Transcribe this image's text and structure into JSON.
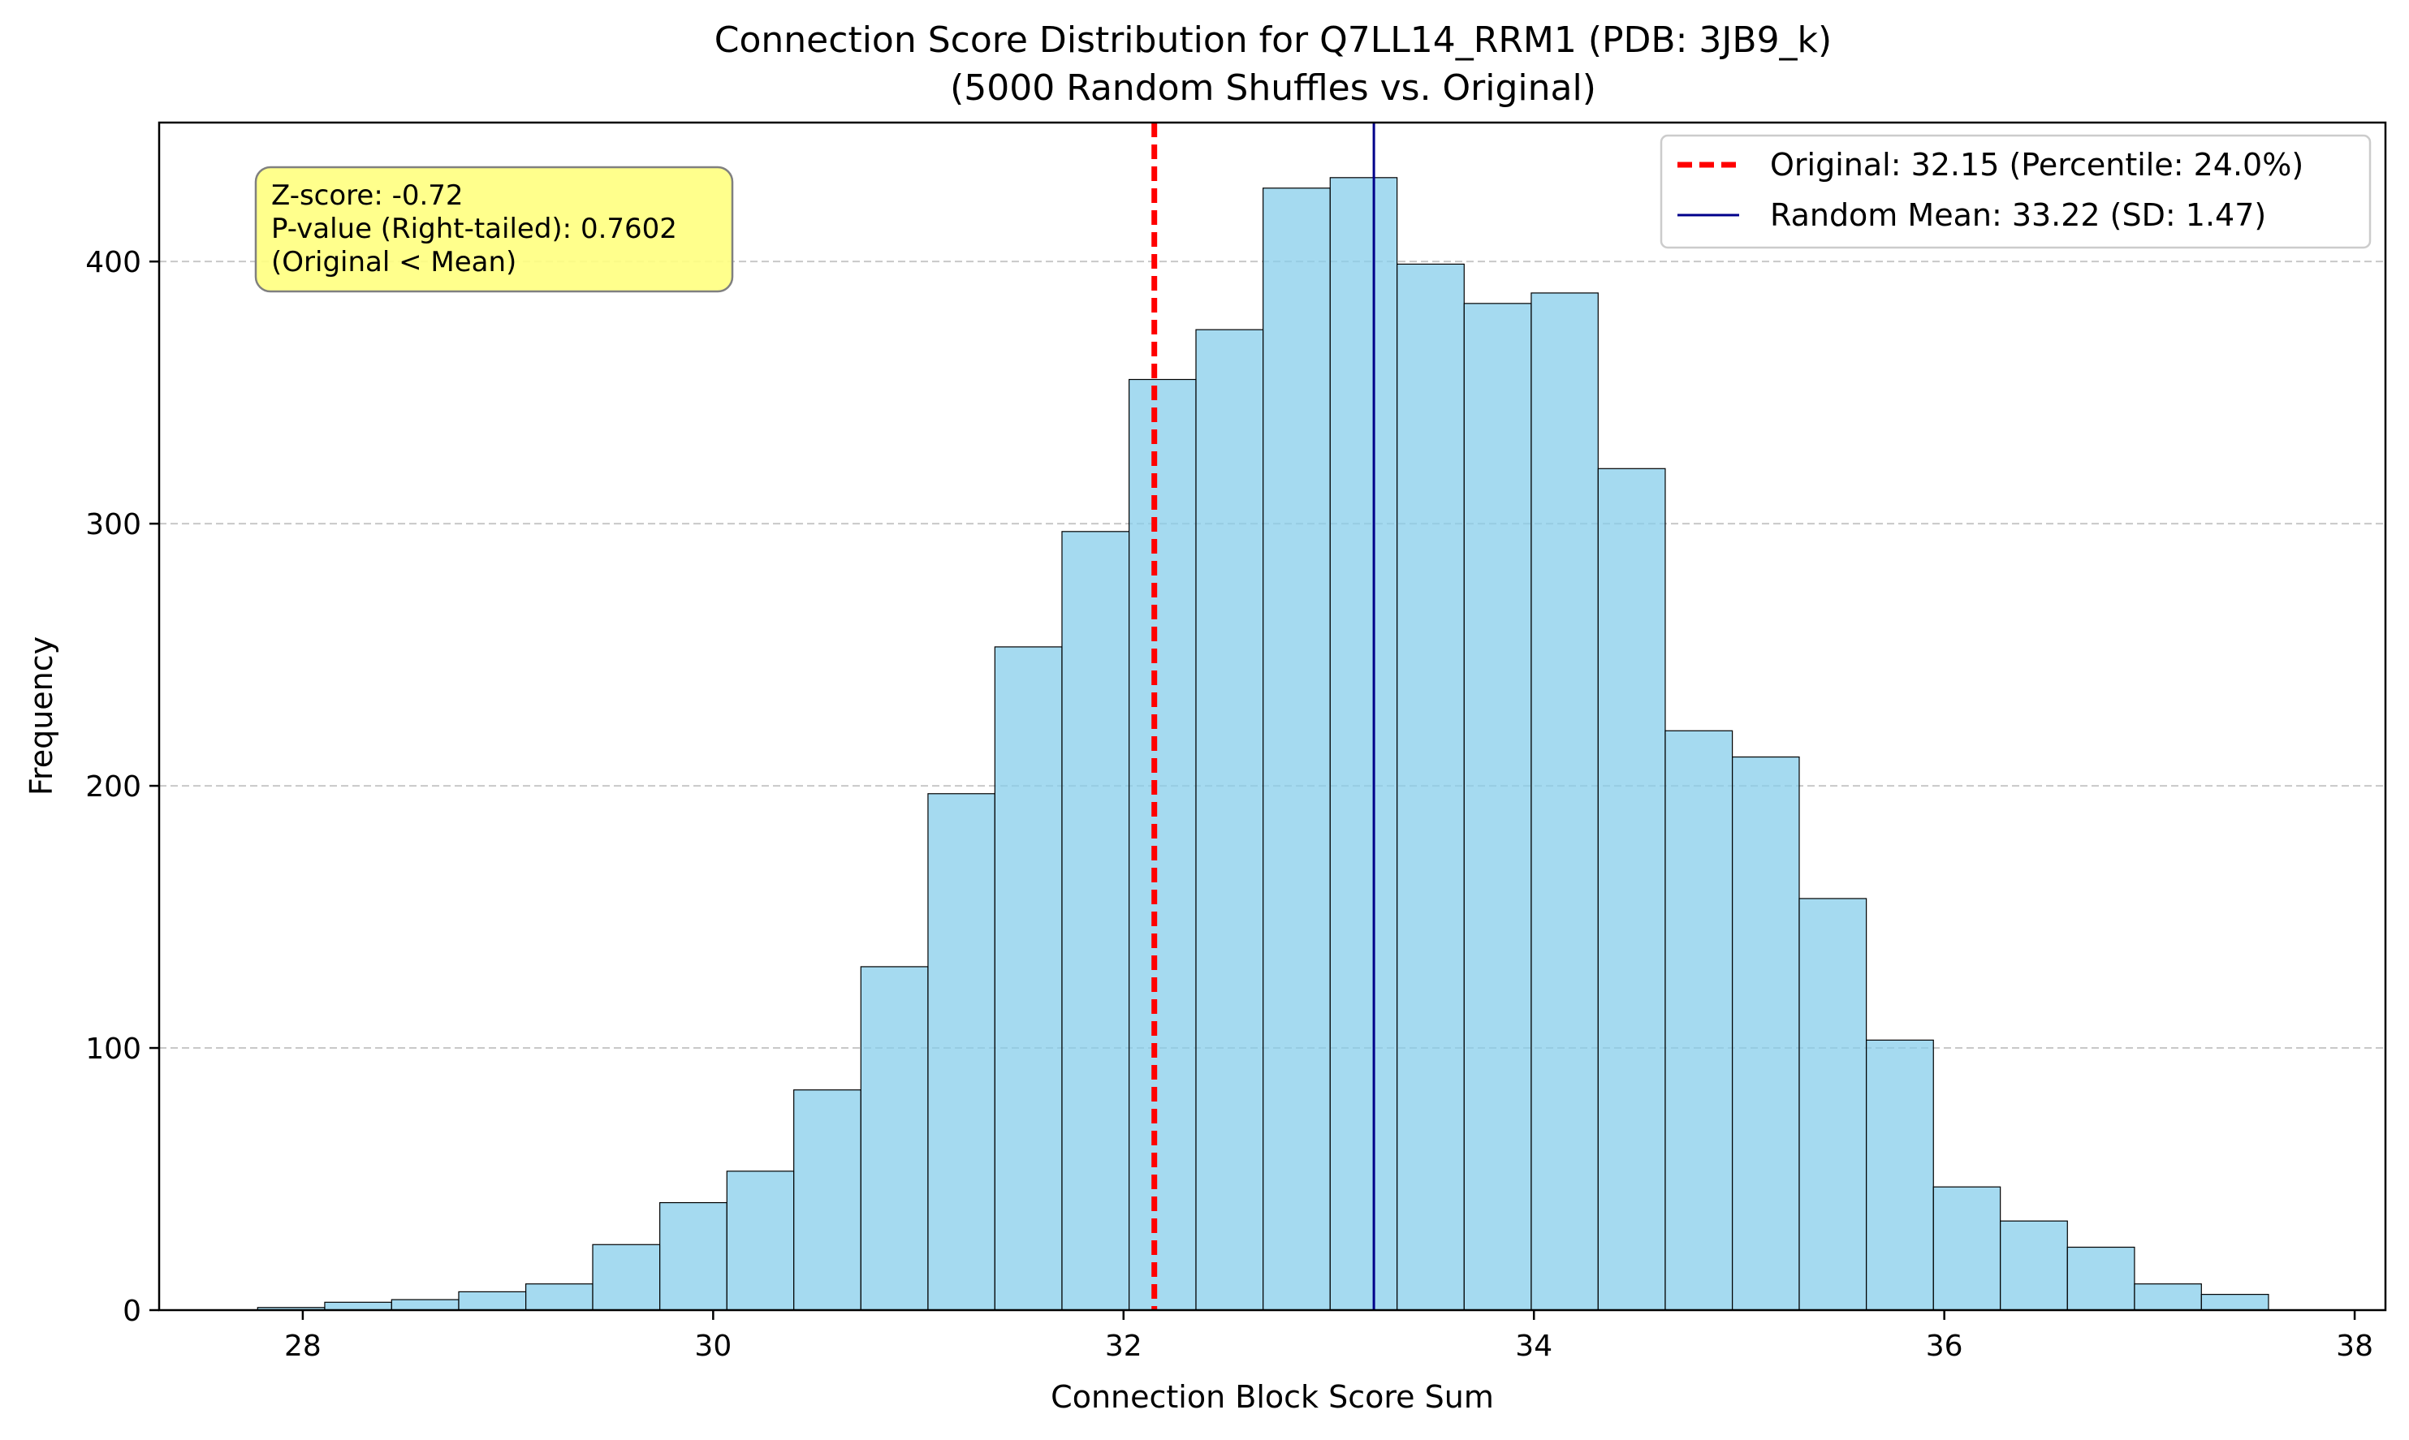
{
  "chart_data": {
    "type": "bar",
    "title_line1": "Connection Score Distribution for Q7LL14_RRM1 (PDB: 3JB9_k)",
    "title_line2": "(5000 Random Shuffles vs. Original)",
    "xlabel": "Connection Block Score Sum",
    "ylabel": "Frequency",
    "xlim": [
      27.3,
      38.15
    ],
    "ylim": [
      0,
      453
    ],
    "x_ticks": [
      28,
      30,
      32,
      34,
      36,
      38
    ],
    "y_ticks": [
      0,
      100,
      200,
      300,
      400
    ],
    "grid": "horizontal dashed",
    "bin_edges": [
      27.78,
      28.107,
      28.433,
      28.76,
      29.087,
      29.413,
      29.74,
      30.067,
      30.393,
      30.72,
      31.047,
      31.373,
      31.7,
      32.027,
      32.353,
      32.68,
      33.007,
      33.333,
      33.66,
      33.987,
      34.313,
      34.64,
      34.967,
      35.293,
      35.62,
      35.947,
      36.273,
      36.6,
      36.927,
      37.253,
      37.58
    ],
    "values": [
      1,
      3,
      4,
      7,
      10,
      25,
      41,
      53,
      84,
      131,
      197,
      253,
      297,
      355,
      374,
      428,
      432,
      399,
      384,
      388,
      321,
      221,
      211,
      157,
      103,
      47,
      34,
      24,
      10,
      6
    ],
    "original_value": 32.15,
    "random_mean": 33.22,
    "legend": {
      "position": "top-right",
      "original_label": "Original: 32.15 (Percentile: 24.0%)",
      "mean_label": "Random Mean: 33.22 (SD: 1.47)"
    },
    "annotation": {
      "position": "top-left",
      "lines": [
        "Z-score: -0.72",
        "P-value (Right-tailed): 0.7602",
        "(Original < Mean)"
      ]
    },
    "colors": {
      "bars": "#87ceeb",
      "bar_edge": "#000000",
      "original_line": "#ff0000",
      "mean_line": "#00008b",
      "annotation_bg": "#ffff80",
      "grid": "#b0b0b0"
    }
  }
}
